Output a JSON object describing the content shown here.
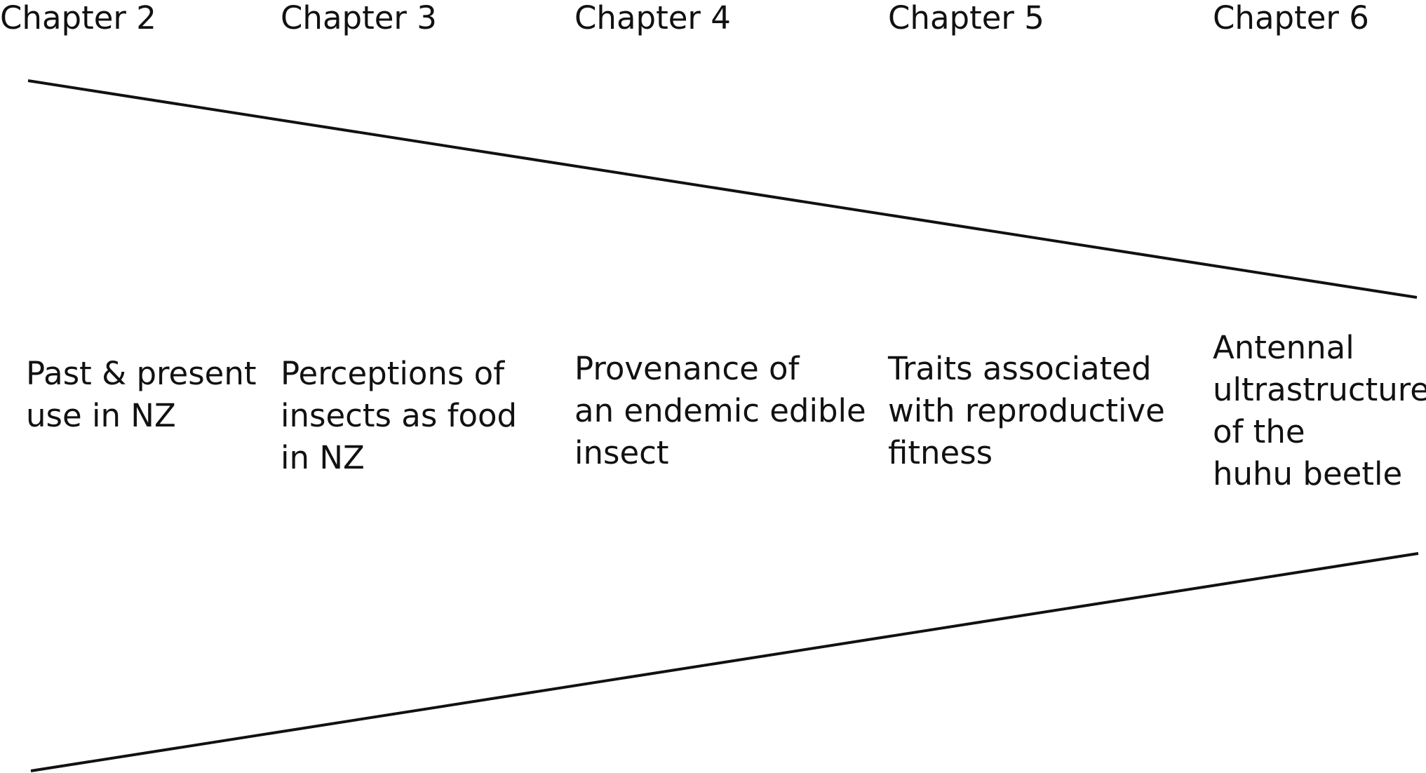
{
  "colors": {
    "ink": "#111111",
    "background": "#ffffff"
  },
  "chapters": [
    {
      "heading": "Chapter 2",
      "topic_lines": [
        "Past & present",
        "use in NZ"
      ]
    },
    {
      "heading": "Chapter 3",
      "topic_lines": [
        "Perceptions of",
        "insects as food",
        "in NZ"
      ]
    },
    {
      "heading": "Chapter 4",
      "topic_lines": [
        "Provenance of",
        "an endemic edible",
        "insect"
      ]
    },
    {
      "heading": "Chapter 5",
      "topic_lines": [
        "Traits associated",
        "with reproductive",
        "fitness"
      ]
    },
    {
      "heading": "Chapter 6",
      "topic_lines": [
        "Antennal",
        "ultrastructures",
        "of the",
        "huhu beetle"
      ]
    }
  ]
}
